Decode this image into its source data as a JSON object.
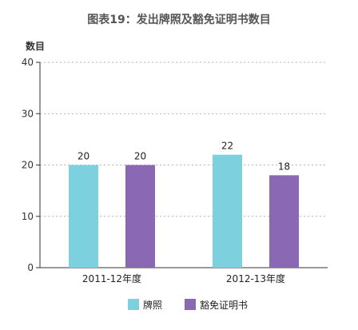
{
  "chart_data": {
    "type": "bar",
    "title": "图表19：发出牌照及豁免证明书数目",
    "ylabel": "数目",
    "xlabel": "",
    "ylim": [
      0,
      40
    ],
    "yticks": [
      0,
      10,
      20,
      30,
      40
    ],
    "grid": true,
    "legend_position": "bottom",
    "categories": [
      "2011-12年度",
      "2012-13年度"
    ],
    "series": [
      {
        "name": "牌照",
        "values": [
          20,
          22
        ],
        "color": "#7dd0de"
      },
      {
        "name": "豁免证明书",
        "values": [
          20,
          18
        ],
        "color": "#8a68b3"
      }
    ]
  }
}
